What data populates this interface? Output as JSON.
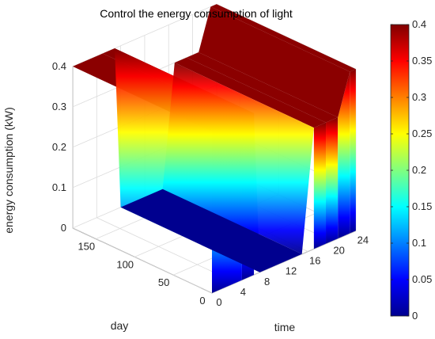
{
  "chart_data": {
    "type": "surface",
    "title": "Control the energy consumption of light",
    "zlabel": "energy consumption (kW)",
    "xlabel": "day",
    "ylabel": "time",
    "xlim": [
      0,
      180
    ],
    "ylim": [
      0,
      24
    ],
    "zlim": [
      0,
      0.4
    ],
    "x_ticks": [
      "0",
      "50",
      "100",
      "150"
    ],
    "y_ticks": [
      "0",
      "4",
      "8",
      "12",
      "16",
      "20",
      "24"
    ],
    "z_ticks": [
      "0",
      "0.1",
      "0.2",
      "0.3",
      "0.4"
    ],
    "colorbar_ticks": [
      "0",
      "0.05",
      "0.1",
      "0.15",
      "0.2",
      "0.25",
      "0.3",
      "0.35",
      "0.4"
    ],
    "colorbar_limits": [
      0,
      0.4
    ],
    "colormap": "jet",
    "grid": true,
    "time_profile": {
      "time_h": [
        0,
        5,
        7,
        8,
        10,
        12,
        15,
        17,
        19,
        21,
        23,
        24
      ],
      "energy_kw": [
        0.4,
        0.4,
        0.4,
        0.0,
        0.0,
        0.0,
        0.0,
        0.3,
        0.3,
        0.3,
        0.4,
        0.4
      ]
    }
  }
}
